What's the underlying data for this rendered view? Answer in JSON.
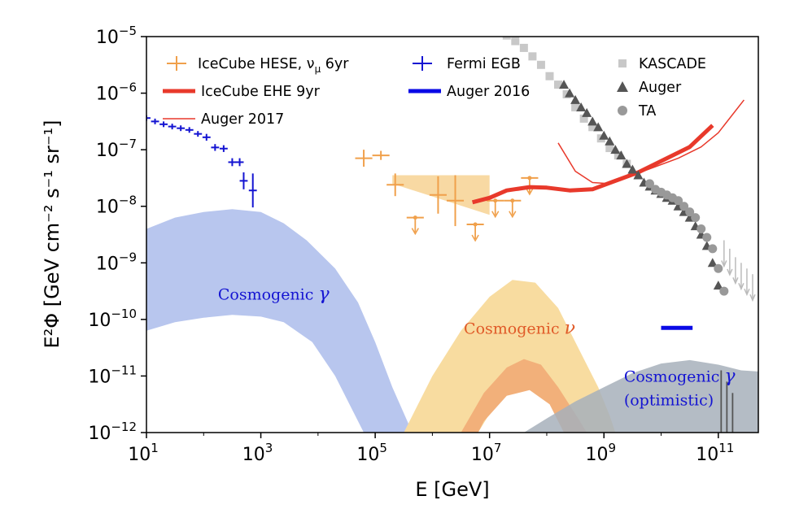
{
  "chart_data": {
    "type": "scatter",
    "xlabel": "E [GeV]",
    "ylabel": "E²Φ [GeV cm⁻² s⁻¹ sr⁻¹]",
    "xscale": "log",
    "yscale": "log",
    "xlim": [
      1,
      11.7
    ],
    "ylim": [
      -12,
      -5
    ],
    "x_ticks": [
      {
        "base": "10",
        "exp": "1",
        "v": 1
      },
      {
        "base": "10",
        "exp": "3",
        "v": 3
      },
      {
        "base": "10",
        "exp": "5",
        "v": 5
      },
      {
        "base": "10",
        "exp": "7",
        "v": 7
      },
      {
        "base": "10",
        "exp": "9",
        "v": 9
      },
      {
        "base": "10",
        "exp": "11",
        "v": 11
      }
    ],
    "y_ticks": [
      {
        "base": "10",
        "exp": "−5",
        "v": -5
      },
      {
        "base": "10",
        "exp": "−6",
        "v": -6
      },
      {
        "base": "10",
        "exp": "−7",
        "v": -7
      },
      {
        "base": "10",
        "exp": "−8",
        "v": -8
      },
      {
        "base": "10",
        "exp": "−9",
        "v": -9
      },
      {
        "base": "10",
        "exp": "−10",
        "v": -10
      },
      {
        "base": "10",
        "exp": "−11",
        "v": -11
      },
      {
        "base": "10",
        "exp": "−12",
        "v": -12
      }
    ],
    "colors": {
      "fermi": "#1414d2",
      "hese": "#f0a04b",
      "ehe": "#e8392b",
      "auger2017": "#e8392b",
      "auger2016": "#0a0ae6",
      "kascade": "#c8c8c8",
      "auger": "#555555",
      "ta": "#999999",
      "cosmo_gamma": "#b8c6ee",
      "cosmo_nu_outer": "#f8dca0",
      "cosmo_nu_inner": "#f2b07a",
      "cosmo_gamma_opt": "#a7b0bb"
    },
    "legend": [
      {
        "label": "IceCube HESE, ν",
        "sub": "μ",
        "tail": " 6yr",
        "marker": "errorbar",
        "color": "#f0a04b"
      },
      {
        "label": "IceCube EHE 9yr",
        "marker": "thick-line",
        "color": "#e8392b"
      },
      {
        "label": "Auger 2017",
        "marker": "thin-line",
        "color": "#e8392b"
      },
      {
        "label": "Fermi EGB",
        "marker": "errorbar",
        "color": "#1414d2"
      },
      {
        "label": "Auger 2016",
        "marker": "thick-line",
        "color": "#0a0ae6"
      },
      {
        "label": "KASCADE",
        "marker": "square",
        "color": "#c8c8c8"
      },
      {
        "label": "Auger",
        "marker": "triangle",
        "color": "#555555"
      },
      {
        "label": "TA",
        "marker": "circle",
        "color": "#999999"
      }
    ],
    "annotations": [
      {
        "text": "Cosmogenic ",
        "greek": "γ",
        "color": "#1414d2",
        "x": 2.25,
        "y": -9.65
      },
      {
        "text": "Cosmogenic ",
        "greek": "ν",
        "color": "#e05a28",
        "x": 6.55,
        "y": -10.25
      },
      {
        "text": "Cosmogenic ",
        "greek": "γ",
        "color": "#1414d2",
        "x": 9.35,
        "y": -11.1
      },
      {
        "text": "(optimistic)",
        "greek": "",
        "color": "#1414d2",
        "x": 9.35,
        "y": -11.52
      }
    ],
    "series": [
      {
        "name": "Fermi EGB",
        "type": "errorbar",
        "color": "#1414d2",
        "points": [
          {
            "x": 1.0,
            "y": -6.44,
            "xe": 0.07,
            "ye": 0.05
          },
          {
            "x": 1.15,
            "y": -6.5,
            "xe": 0.07,
            "ye": 0.05
          },
          {
            "x": 1.3,
            "y": -6.55,
            "xe": 0.07,
            "ye": 0.05
          },
          {
            "x": 1.45,
            "y": -6.59,
            "xe": 0.07,
            "ye": 0.05
          },
          {
            "x": 1.6,
            "y": -6.62,
            "xe": 0.07,
            "ye": 0.05
          },
          {
            "x": 1.75,
            "y": -6.65,
            "xe": 0.07,
            "ye": 0.05
          },
          {
            "x": 1.9,
            "y": -6.72,
            "xe": 0.07,
            "ye": 0.05
          },
          {
            "x": 2.05,
            "y": -6.78,
            "xe": 0.07,
            "ye": 0.06
          },
          {
            "x": 2.2,
            "y": -6.96,
            "xe": 0.07,
            "ye": 0.06
          },
          {
            "x": 2.35,
            "y": -6.98,
            "xe": 0.07,
            "ye": 0.06
          },
          {
            "x": 2.5,
            "y": -7.22,
            "xe": 0.07,
            "ye": 0.07
          },
          {
            "x": 2.63,
            "y": -7.22,
            "xe": 0.07,
            "ye": 0.07
          },
          {
            "x": 2.7,
            "y": -7.55,
            "xe": 0.07,
            "ye": 0.15
          },
          {
            "x": 2.86,
            "y": -7.72,
            "xe": 0.07,
            "ye": 0.3
          }
        ]
      },
      {
        "name": "IceCube HESE, νμ 6yr",
        "type": "errorbar",
        "color": "#f0a04b",
        "points": [
          {
            "x": 4.8,
            "y": -7.15,
            "xe": 0.15,
            "ye": 0.15,
            "ul": false
          },
          {
            "x": 5.1,
            "y": -7.1,
            "xe": 0.15,
            "ye": 0.08,
            "ul": false
          },
          {
            "x": 5.35,
            "y": -7.62,
            "xe": 0.15,
            "ye": 0.2,
            "ul": false
          },
          {
            "x": 5.7,
            "y": -8.2,
            "xe": 0.15,
            "ye": 0,
            "ul": true
          },
          {
            "x": 6.1,
            "y": -7.8,
            "xe": 0.15,
            "ye": 0.33,
            "ul": false
          },
          {
            "x": 6.4,
            "y": -7.9,
            "xe": 0.15,
            "ye": 0.45,
            "ul": false
          },
          {
            "x": 6.75,
            "y": -8.32,
            "xe": 0.15,
            "ye": 0,
            "ul": true
          },
          {
            "x": 7.1,
            "y": -7.9,
            "xe": 0.15,
            "ye": 0,
            "ul": true
          },
          {
            "x": 7.4,
            "y": -7.9,
            "xe": 0.15,
            "ye": 0,
            "ul": true
          },
          {
            "x": 7.7,
            "y": -7.5,
            "xe": 0.15,
            "ye": 0,
            "ul": true
          }
        ]
      },
      {
        "name": "IceCube EHE 9yr",
        "type": "line",
        "color": "#e8392b",
        "width": 5,
        "x": [
          6.7,
          7.0,
          7.3,
          7.7,
          8.0,
          8.4,
          8.8,
          9.2,
          9.6,
          10.0,
          10.5,
          10.9
        ],
        "y": [
          -7.93,
          -7.85,
          -7.72,
          -7.66,
          -7.67,
          -7.72,
          -7.7,
          -7.55,
          -7.4,
          -7.2,
          -6.95,
          -6.57
        ]
      },
      {
        "name": "Auger 2017",
        "type": "line",
        "color": "#e8392b",
        "width": 1.5,
        "x": [
          8.2,
          8.5,
          8.8,
          9.1,
          9.5,
          9.9,
          10.3,
          10.7,
          11.0,
          11.45
        ],
        "y": [
          -6.88,
          -7.38,
          -7.58,
          -7.6,
          -7.45,
          -7.3,
          -7.15,
          -6.95,
          -6.7,
          -6.12
        ]
      },
      {
        "name": "Auger 2016",
        "type": "line",
        "color": "#0a0ae6",
        "width": 5,
        "x": [
          10.0,
          10.55
        ],
        "y": [
          -10.15,
          -10.15
        ]
      },
      {
        "name": "KASCADE",
        "type": "markers",
        "marker": "square",
        "color": "#c8c8c8",
        "x": [
          7.3,
          7.45,
          7.6,
          7.75,
          7.9,
          8.05,
          8.2,
          8.35,
          8.5,
          8.65,
          8.8,
          8.95,
          9.1,
          9.25,
          9.4
        ],
        "y": [
          -4.98,
          -5.08,
          -5.2,
          -5.35,
          -5.5,
          -5.7,
          -5.85,
          -6.02,
          -6.25,
          -6.45,
          -6.6,
          -6.8,
          -6.97,
          -7.1,
          -7.25
        ]
      },
      {
        "name": "Auger",
        "type": "markers",
        "marker": "triangle",
        "color": "#555555",
        "x": [
          8.3,
          8.4,
          8.5,
          8.6,
          8.7,
          8.8,
          8.9,
          9.0,
          9.1,
          9.2,
          9.3,
          9.4,
          9.5,
          9.6,
          9.7,
          9.8,
          9.9,
          10.0,
          10.1,
          10.2,
          10.3,
          10.4,
          10.5,
          10.6,
          10.7,
          10.8,
          10.9,
          11.0
        ],
        "y": [
          -5.85,
          -6.0,
          -6.12,
          -6.25,
          -6.35,
          -6.5,
          -6.6,
          -6.75,
          -6.85,
          -7.0,
          -7.1,
          -7.25,
          -7.35,
          -7.45,
          -7.58,
          -7.65,
          -7.72,
          -7.78,
          -7.85,
          -7.9,
          -8.0,
          -8.1,
          -8.2,
          -8.35,
          -8.5,
          -8.7,
          -9.0,
          -9.4
        ]
      },
      {
        "name": "TA",
        "type": "markers",
        "marker": "circle",
        "color": "#999999",
        "x": [
          9.8,
          9.9,
          10.0,
          10.1,
          10.2,
          10.3,
          10.4,
          10.5,
          10.6,
          10.7,
          10.8,
          10.9,
          11.0,
          11.1
        ],
        "y": [
          -7.6,
          -7.7,
          -7.75,
          -7.8,
          -7.85,
          -7.9,
          -8.0,
          -8.1,
          -8.2,
          -8.4,
          -8.55,
          -8.75,
          -9.1,
          -9.5
        ]
      }
    ],
    "bands": [
      {
        "name": "Cosmogenic γ",
        "color": "#b8c6ee",
        "points": [
          [
            1,
            -8.4
          ],
          [
            1.5,
            -8.2
          ],
          [
            2.0,
            -8.1
          ],
          [
            2.5,
            -8.05
          ],
          [
            3.0,
            -8.1
          ],
          [
            3.4,
            -8.3
          ],
          [
            3.8,
            -8.6
          ],
          [
            4.3,
            -9.1
          ],
          [
            4.7,
            -9.7
          ],
          [
            5.0,
            -10.4
          ],
          [
            5.3,
            -11.2
          ],
          [
            5.65,
            -12
          ],
          [
            4.8,
            -12
          ],
          [
            4.3,
            -11
          ],
          [
            3.9,
            -10.4
          ],
          [
            3.4,
            -10.05
          ],
          [
            3.0,
            -9.95
          ],
          [
            2.5,
            -9.92
          ],
          [
            2.0,
            -9.97
          ],
          [
            1.5,
            -10.05
          ],
          [
            1,
            -10.2
          ]
        ]
      },
      {
        "name": "Cosmogenic ν outer",
        "color": "#f8dca0",
        "points": [
          [
            5.5,
            -12
          ],
          [
            6.0,
            -11.0
          ],
          [
            6.5,
            -10.2
          ],
          [
            7.0,
            -9.6
          ],
          [
            7.4,
            -9.3
          ],
          [
            7.8,
            -9.35
          ],
          [
            8.2,
            -9.8
          ],
          [
            8.6,
            -10.6
          ],
          [
            8.9,
            -11.2
          ],
          [
            9.1,
            -11.7
          ],
          [
            9.2,
            -12
          ],
          [
            8.5,
            -12
          ],
          [
            8.2,
            -11.3
          ],
          [
            7.9,
            -11.05
          ],
          [
            7.5,
            -11.1
          ],
          [
            7.1,
            -11.5
          ],
          [
            6.8,
            -12
          ]
        ]
      },
      {
        "name": "Cosmogenic ν inner",
        "color": "#f2b07a",
        "points": [
          [
            6.5,
            -12
          ],
          [
            6.9,
            -11.3
          ],
          [
            7.3,
            -10.85
          ],
          [
            7.6,
            -10.7
          ],
          [
            7.9,
            -10.8
          ],
          [
            8.2,
            -11.2
          ],
          [
            8.55,
            -11.75
          ],
          [
            8.7,
            -12
          ],
          [
            8.3,
            -12
          ],
          [
            8.05,
            -11.5
          ],
          [
            7.7,
            -11.25
          ],
          [
            7.3,
            -11.35
          ],
          [
            6.9,
            -11.8
          ],
          [
            6.8,
            -12
          ]
        ]
      },
      {
        "name": "Cosmogenic γ (optimistic)",
        "color": "#a7b0bb",
        "points": [
          [
            7.6,
            -12
          ],
          [
            8.0,
            -11.75
          ],
          [
            8.5,
            -11.45
          ],
          [
            9.0,
            -11.2
          ],
          [
            9.5,
            -10.95
          ],
          [
            10.0,
            -10.78
          ],
          [
            10.5,
            -10.72
          ],
          [
            11.0,
            -10.8
          ],
          [
            11.4,
            -10.9
          ],
          [
            11.7,
            -10.92
          ],
          [
            11.7,
            -12
          ]
        ]
      },
      {
        "name": "HESE band",
        "color": "#f8d9a3",
        "points": [
          [
            5.3,
            -7.45
          ],
          [
            7.0,
            -7.45
          ],
          [
            7.0,
            -8.15
          ],
          [
            5.3,
            -7.6
          ]
        ]
      }
    ]
  }
}
